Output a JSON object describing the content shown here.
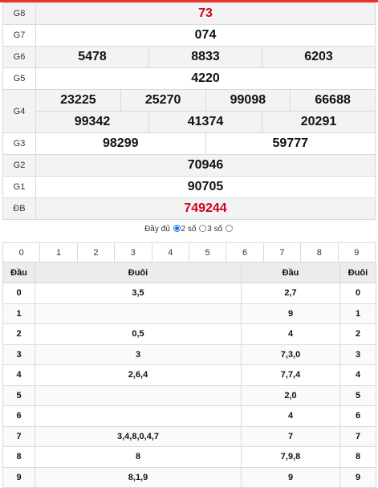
{
  "prizes": [
    {
      "label": "G8",
      "values": [
        "73"
      ]
    },
    {
      "label": "G7",
      "values": [
        "074"
      ]
    },
    {
      "label": "G6",
      "values": [
        "5478",
        "8833",
        "6203"
      ]
    },
    {
      "label": "G5",
      "values": [
        "4220"
      ]
    },
    {
      "label": "G4",
      "values": [
        "23225",
        "25270",
        "99098",
        "66688",
        "99342",
        "41374",
        "20291"
      ]
    },
    {
      "label": "G3",
      "values": [
        "98299",
        "59777"
      ]
    },
    {
      "label": "G2",
      "values": [
        "70946"
      ]
    },
    {
      "label": "G1",
      "values": [
        "90705"
      ]
    },
    {
      "label": "ĐB",
      "values": [
        "749244"
      ]
    }
  ],
  "colors": {
    "highlight": "#d0021b",
    "accent": "#e8322e"
  },
  "filter": {
    "full": "Đầy đủ",
    "two": "2 số",
    "three": "3 số",
    "selected": "2 số"
  },
  "digit_tabs": [
    "0",
    "1",
    "2",
    "3",
    "4",
    "5",
    "6",
    "7",
    "8",
    "9"
  ],
  "headers": {
    "dau_left": "Đầu",
    "duoi_left": "Đuôi",
    "dau_right": "Đầu",
    "duoi_right": "Đuôi"
  },
  "rows": [
    {
      "dau": "0",
      "duoi": "3,5",
      "dau2": "2,7",
      "duoi2": "0"
    },
    {
      "dau": "1",
      "duoi": "",
      "dau2": "9",
      "duoi2": "1"
    },
    {
      "dau": "2",
      "duoi": "0,5",
      "dau2": "4",
      "duoi2": "2"
    },
    {
      "dau": "3",
      "duoi": "3",
      "dau2": "7,3,0",
      "duoi2": "3"
    },
    {
      "dau": "4",
      "duoi": "2,6,4",
      "dau2": "7,7,4",
      "duoi2": "4"
    },
    {
      "dau": "5",
      "duoi": "",
      "dau2": "2,0",
      "duoi2": "5"
    },
    {
      "dau": "6",
      "duoi": "",
      "dau2": "4",
      "duoi2": "6"
    },
    {
      "dau": "7",
      "duoi": "3,4,8,0,4,7",
      "dau2": "7",
      "duoi2": "7"
    },
    {
      "dau": "8",
      "duoi": "8",
      "dau2": "7,9,8",
      "duoi2": "8"
    },
    {
      "dau": "9",
      "duoi": "8,1,9",
      "dau2": "9",
      "duoi2": "9"
    }
  ]
}
